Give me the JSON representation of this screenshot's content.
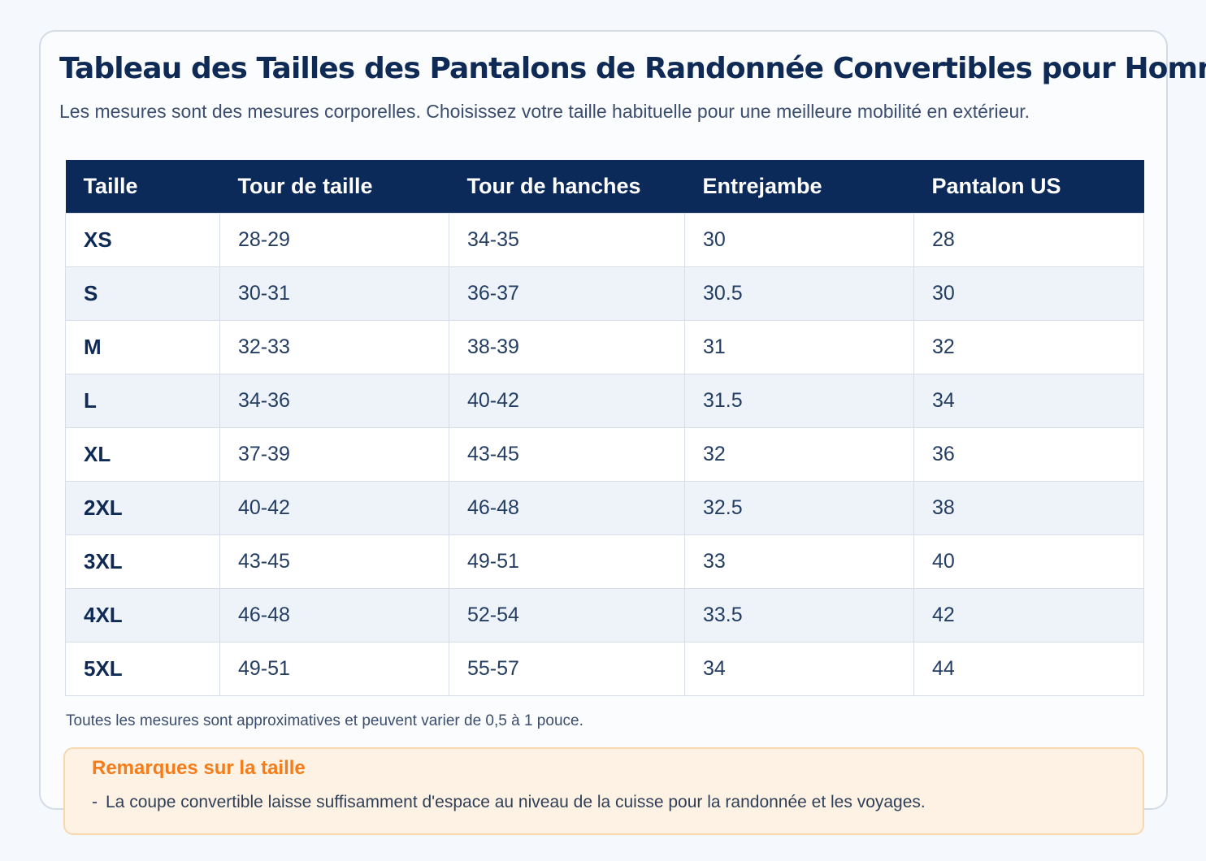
{
  "title": "Tableau des Tailles des Pantalons de Randonnée Convertibles pour Hommes",
  "subtitle": "Les mesures sont des mesures corporelles. Choisissez votre taille habituelle pour une meilleure mobilité en extérieur.",
  "table": {
    "headers": [
      "Taille",
      "Tour de taille",
      "Tour de hanches",
      "Entrejambe",
      "Pantalon US"
    ],
    "rows": [
      [
        "XS",
        "28-29",
        "34-35",
        "30",
        "28"
      ],
      [
        "S",
        "30-31",
        "36-37",
        "30.5",
        "30"
      ],
      [
        "M",
        "32-33",
        "38-39",
        "31",
        "32"
      ],
      [
        "L",
        "34-36",
        "40-42",
        "31.5",
        "34"
      ],
      [
        "XL",
        "37-39",
        "43-45",
        "32",
        "36"
      ],
      [
        "2XL",
        "40-42",
        "46-48",
        "32.5",
        "38"
      ],
      [
        "3XL",
        "43-45",
        "49-51",
        "33",
        "40"
      ],
      [
        "4XL",
        "46-48",
        "52-54",
        "33.5",
        "42"
      ],
      [
        "5XL",
        "49-51",
        "55-57",
        "34",
        "44"
      ]
    ]
  },
  "note": "Toutes les mesures sont approximatives et peuvent varier de 0,5 à 1 pouce.",
  "remarks": {
    "title": "Remarques sur la taille",
    "items": [
      "La coupe convertible laisse suffisamment d'espace au niveau de la cuisse pour la randonnée et les voyages."
    ]
  },
  "colors": {
    "header_bg": "#0c2a59",
    "title": "#0f2a55",
    "remarks_title": "#f47c1b",
    "remarks_bg": "#fdf2e3",
    "alt_row_bg": "#eef3fa"
  }
}
